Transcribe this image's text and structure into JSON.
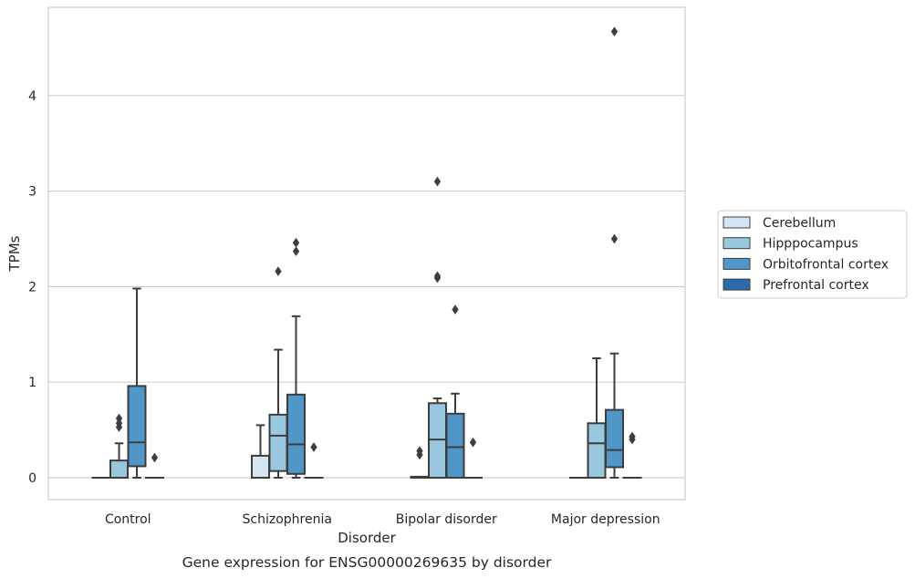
{
  "chart_data": {
    "type": "box",
    "title": "Gene expression for ENSG00000269635 by disorder",
    "xlabel": "Disorder",
    "ylabel": "TPMs",
    "ylim": [
      -0.23,
      4.92
    ],
    "yticks": [
      0,
      1,
      2,
      3,
      4
    ],
    "grid": "horizontal",
    "legend_position": "right",
    "categories": [
      "Control",
      "Schizophrenia",
      "Bipolar disorder",
      "Major depression"
    ],
    "series": [
      {
        "name": "Cerebellum",
        "color": "#d3e5f2",
        "boxes": [
          {
            "whisker_low": 0,
            "q1": 0,
            "median": 0,
            "q3": 0,
            "whisker_high": 0,
            "outliers": []
          },
          {
            "whisker_low": 0,
            "q1": 0,
            "median": 0,
            "q3": 0.23,
            "whisker_high": 0.55,
            "outliers": []
          },
          {
            "whisker_low": 0,
            "q1": 0,
            "median": 0,
            "q3": 0.01,
            "whisker_high": 0.01,
            "outliers": [
              0.24,
              0.28
            ]
          },
          {
            "whisker_low": 0,
            "q1": 0,
            "median": 0,
            "q3": 0,
            "whisker_high": 0,
            "outliers": []
          }
        ]
      },
      {
        "name": "Hipppocampus",
        "color": "#9ac7e0",
        "boxes": [
          {
            "whisker_low": 0,
            "q1": 0,
            "median": 0,
            "q3": 0.18,
            "whisker_high": 0.36,
            "outliers": [
              0.53,
              0.57,
              0.62
            ]
          },
          {
            "whisker_low": 0,
            "q1": 0.07,
            "median": 0.44,
            "q3": 0.66,
            "whisker_high": 1.34,
            "outliers": [
              2.16
            ]
          },
          {
            "whisker_low": 0,
            "q1": 0,
            "median": 0.4,
            "q3": 0.78,
            "whisker_high": 0.83,
            "outliers": [
              2.09,
              2.11,
              3.1
            ]
          },
          {
            "whisker_low": 0,
            "q1": 0,
            "median": 0.36,
            "q3": 0.57,
            "whisker_high": 1.25,
            "outliers": []
          }
        ]
      },
      {
        "name": "Orbitofrontal cortex",
        "color": "#5097c7",
        "boxes": [
          {
            "whisker_low": 0,
            "q1": 0.12,
            "median": 0.37,
            "q3": 0.96,
            "whisker_high": 1.98,
            "outliers": []
          },
          {
            "whisker_low": 0,
            "q1": 0.04,
            "median": 0.35,
            "q3": 0.87,
            "whisker_high": 1.69,
            "outliers": [
              2.37,
              2.46
            ]
          },
          {
            "whisker_low": 0,
            "q1": 0,
            "median": 0.32,
            "q3": 0.67,
            "whisker_high": 0.88,
            "outliers": [
              1.76
            ]
          },
          {
            "whisker_low": 0,
            "q1": 0.11,
            "median": 0.29,
            "q3": 0.71,
            "whisker_high": 1.3,
            "outliers": [
              2.5,
              4.67
            ]
          }
        ]
      },
      {
        "name": "Prefrontal cortex",
        "color": "#2b6ba8",
        "boxes": [
          {
            "whisker_low": 0,
            "q1": 0,
            "median": 0,
            "q3": 0,
            "whisker_high": 0,
            "outliers": [
              0.21
            ]
          },
          {
            "whisker_low": 0,
            "q1": 0,
            "median": 0,
            "q3": 0,
            "whisker_high": 0,
            "outliers": [
              0.32
            ]
          },
          {
            "whisker_low": 0,
            "q1": 0,
            "median": 0,
            "q3": 0,
            "whisker_high": 0,
            "outliers": [
              0.37
            ]
          },
          {
            "whisker_low": 0,
            "q1": 0,
            "median": 0,
            "q3": 0,
            "whisker_high": 0,
            "outliers": [
              0.4,
              0.43
            ]
          }
        ]
      }
    ]
  }
}
